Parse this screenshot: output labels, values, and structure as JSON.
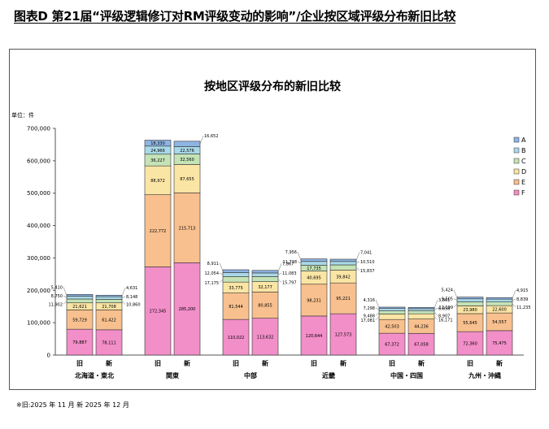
{
  "header": {
    "title": "图表D  第21届“评级逻辑修订对RM评级变动的影响”/企业按区域评级分布新旧比较"
  },
  "footnote": "※旧:2025 年 11 月  新 2025 年 12 月",
  "chart_data": {
    "type": "bar",
    "stacked": true,
    "title": "按地区评级分布的新旧比较",
    "unit_label": "单位：件",
    "ylim": [
      0,
      700000
    ],
    "yticks": [
      "0",
      "100,000",
      "200,000",
      "300,000",
      "400,000",
      "500,000",
      "600,000",
      "700,000"
    ],
    "grid": false,
    "legend_position": "right",
    "stack_order": [
      "F",
      "E",
      "D",
      "C",
      "B",
      "A"
    ],
    "legend": [
      {
        "name": "A",
        "color": "#8DB4E2"
      },
      {
        "name": "B",
        "color": "#A9D9E8"
      },
      {
        "name": "C",
        "color": "#C4E3B6"
      },
      {
        "name": "D",
        "color": "#FBE5A5"
      },
      {
        "name": "E",
        "color": "#F8C08E"
      },
      {
        "name": "F",
        "color": "#F28EC8"
      }
    ],
    "groups": [
      {
        "region": "北海道・東北",
        "bars": [
          {
            "label": "旧",
            "values": {
              "F": 79887,
              "E": 59729,
              "D": 21621,
              "C": 11902,
              "B": 8750,
              "A": 5410
            },
            "value_texts": {
              "F": "79,887",
              "E": "59,729",
              "D": "21,621",
              "C": "11,902",
              "B": "8,750",
              "A": "5,410"
            }
          },
          {
            "label": "新",
            "values": {
              "F": 78111,
              "E": 61422,
              "D": 21708,
              "C": 10860,
              "B": 8148,
              "A": 4631
            },
            "value_texts": {
              "F": "78,111",
              "E": "61,422",
              "D": "21,708",
              "C": "10,860",
              "B": "8,148",
              "A": "4,631"
            }
          }
        ]
      },
      {
        "region": "関東",
        "bars": [
          {
            "label": "旧",
            "values": {
              "F": 272345,
              "E": 222772,
              "D": 88972,
              "C": 36227,
              "B": 24966,
              "A": 18330
            },
            "value_texts": {
              "F": "272,345",
              "E": "222,772",
              "D": "88,972",
              "C": "36,227",
              "B": "24,966",
              "A": "18,330"
            }
          },
          {
            "label": "新",
            "values": {
              "F": 285200,
              "E": 215713,
              "D": 87655,
              "C": 32560,
              "B": 22576,
              "A": 16652
            },
            "value_texts": {
              "F": "285,200",
              "E": "215,713",
              "D": "87,655",
              "C": "32,560",
              "B": "22,576",
              "A": "16,652"
            }
          }
        ]
      },
      {
        "region": "中部",
        "bars": [
          {
            "label": "旧",
            "values": {
              "F": 110022,
              "E": 81544,
              "D": 33775,
              "C": 17175,
              "B": 12054,
              "A": 8911
            },
            "value_texts": {
              "F": "110,022",
              "E": "81,544",
              "D": "33,775",
              "C": "17,175",
              "B": "12,054",
              "A": "8,911"
            }
          },
          {
            "label": "新",
            "values": {
              "F": 113632,
              "E": 80855,
              "D": 32177,
              "C": 15797,
              "B": 11083,
              "A": 7867
            },
            "value_texts": {
              "F": "113,632",
              "E": "80,855",
              "D": "32,177",
              "C": "15,797",
              "B": "11,083",
              "A": "7,867"
            }
          }
        ]
      },
      {
        "region": "近畿",
        "bars": [
          {
            "label": "旧",
            "values": {
              "F": 120644,
              "E": 98231,
              "D": 40695,
              "C": 17735,
              "B": 11738,
              "A": 7956
            },
            "value_texts": {
              "F": "120,644",
              "E": "98,231",
              "D": "40,695",
              "C": "17,735",
              "B": "11,738",
              "A": "7,956"
            }
          },
          {
            "label": "新",
            "values": {
              "F": 127573,
              "E": 95221,
              "D": 39842,
              "C": 15837,
              "B": 10510,
              "A": 7041
            },
            "value_texts": {
              "F": "127,573",
              "E": "95,221",
              "D": "39,842",
              "C": "15,837",
              "B": "10,510",
              "A": "7,041"
            }
          }
        ]
      },
      {
        "region": "中国・四国",
        "bars": [
          {
            "label": "旧",
            "values": {
              "F": 67372,
              "E": 42503,
              "D": 17081,
              "C": 9488,
              "B": 7298,
              "A": 4316
            },
            "value_texts": {
              "F": "67,372",
              "E": "42,503",
              "D": "17,081",
              "C": "9,488",
              "B": "7,298",
              "A": "4,316"
            }
          },
          {
            "label": "新",
            "values": {
              "F": 67058,
              "E": 44236,
              "D": 16171,
              "C": 8907,
              "B": 6858,
              "A": 3861
            },
            "value_texts": {
              "F": "67,058",
              "E": "44,236",
              "D": "16,171",
              "C": "8,907",
              "B": "6,858",
              "A": "3,861"
            }
          }
        ]
      },
      {
        "region": "九州・沖縄",
        "bars": [
          {
            "label": "旧",
            "values": {
              "F": 72360,
              "E": 55645,
              "D": 23980,
              "C": 12199,
              "B": 9505,
              "A": 5424
            },
            "value_texts": {
              "F": "72,360",
              "E": "55,645",
              "D": "23,980",
              "C": "12,199",
              "B": "9,505",
              "A": "5,424"
            }
          },
          {
            "label": "新",
            "values": {
              "F": 75475,
              "E": 54557,
              "D": 22600,
              "C": 11235,
              "B": 8839,
              "A": 4915
            },
            "value_texts": {
              "F": "75,475",
              "E": "54,557",
              "D": "22,600",
              "C": "11,235",
              "B": "8,839",
              "A": "4,915"
            }
          }
        ]
      }
    ]
  }
}
